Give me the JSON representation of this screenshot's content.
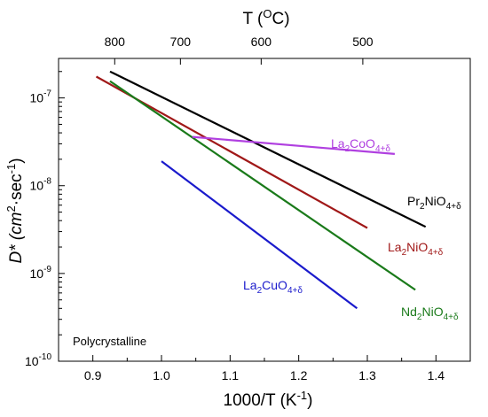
{
  "chart_data": {
    "type": "line",
    "xlabel": "1000/T (K⁻¹)",
    "xlabel_parts": {
      "main": "1000/T (K",
      "sup": "-1",
      "close": ")"
    },
    "ylabel_parts": {
      "a": "D* (cm",
      "sup1": "2",
      "b": "·sec",
      "sup2": "-1",
      "c": ")"
    },
    "top_axis_label_parts": {
      "main": "T (",
      "sup": "O",
      "end": "C)"
    },
    "xlim": [
      0.85,
      1.45
    ],
    "ylim_log10": [
      -10,
      -6.55
    ],
    "y_scale": "log",
    "grid": false,
    "legend": "none (series labelled inline)",
    "x_ticks": [
      0.9,
      1.0,
      1.1,
      1.2,
      1.3,
      1.4
    ],
    "x_tick_labels": [
      "0.9",
      "1.0",
      "1.1",
      "1.2",
      "1.3",
      "1.4"
    ],
    "y_ticks_exp": [
      -10,
      -9,
      -8,
      -7
    ],
    "y_tick_base": "10",
    "top_ticks_celsius": [
      800,
      700,
      600,
      500
    ],
    "top_tick_labels": [
      "800",
      "700",
      "600",
      "500"
    ],
    "annotation": "Polycrystalline",
    "series": [
      {
        "name_parts": {
          "a": "Pr",
          "sub1": "2",
          "b": "NiO",
          "sub2": "4+δ"
        },
        "color": "#000000",
        "label_anchor": "start",
        "x": [
          0.925,
          1.385
        ],
        "y": [
          2e-07,
          3.4e-09
        ]
      },
      {
        "name_parts": {
          "a": "La",
          "sub1": "2",
          "b": "NiO",
          "sub2": "4+δ"
        },
        "color": "#a01818",
        "label_anchor": "start",
        "x": [
          0.905,
          1.3
        ],
        "y": [
          1.75e-07,
          3.3e-09
        ]
      },
      {
        "name_parts": {
          "a": "Nd",
          "sub1": "2",
          "b": "NiO",
          "sub2": "4+δ"
        },
        "color": "#1a7a1a",
        "label_anchor": "start",
        "x": [
          0.925,
          1.37
        ],
        "y": [
          1.55e-07,
          6.5e-10
        ]
      },
      {
        "name_parts": {
          "a": "La",
          "sub1": "2",
          "b": "CoO",
          "sub2": "4+δ"
        },
        "color": "#b040e0",
        "label_anchor": "start",
        "x": [
          1.045,
          1.34
        ],
        "y": [
          3.6e-08,
          2.3e-08
        ]
      },
      {
        "name_parts": {
          "a": "La",
          "sub1": "2",
          "b": "CuO",
          "sub2": "4+δ"
        },
        "color": "#1a1acc",
        "label_anchor": "start",
        "x": [
          1.0,
          1.285
        ],
        "y": [
          1.9e-08,
          4e-10
        ]
      }
    ]
  }
}
